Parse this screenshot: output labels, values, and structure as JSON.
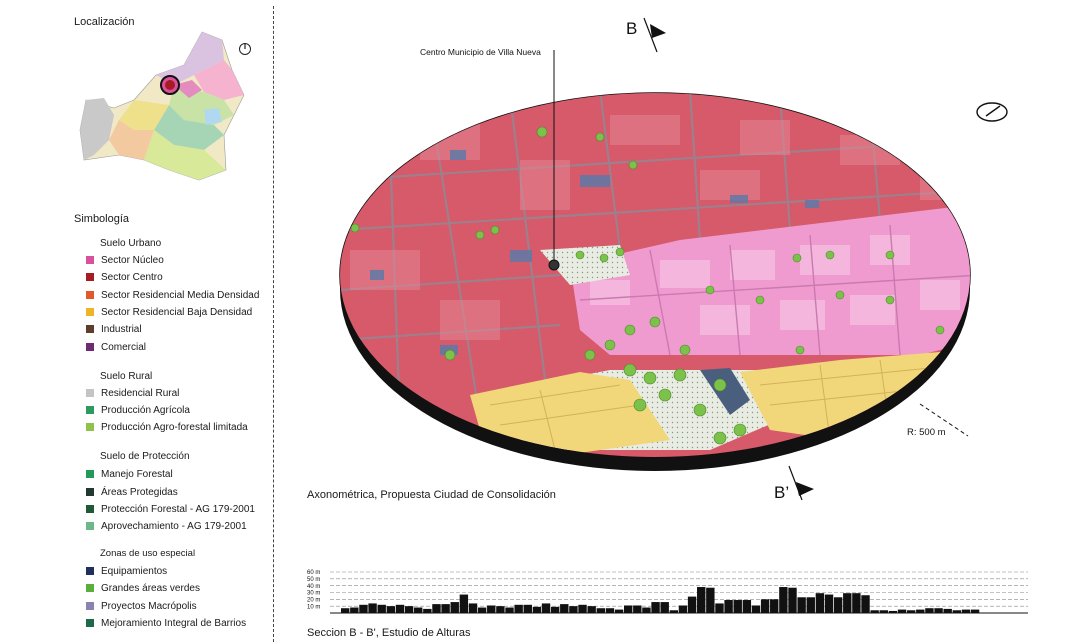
{
  "sidebar": {
    "location_title": "Localización",
    "legend_title": "Simbología",
    "groups": [
      {
        "title": "Suelo Urbano",
        "items": [
          {
            "label": "Sector Núcleo",
            "color": "#d9519c"
          },
          {
            "label": "Sector Centro",
            "color": "#a61c24"
          },
          {
            "label": "Sector Residencial Media Densidad",
            "color": "#e2582a"
          },
          {
            "label": "Sector Residencial Baja Densidad",
            "color": "#efb52a"
          },
          {
            "label": "Industrial",
            "color": "#5e3d2a"
          },
          {
            "label": "Comercial",
            "color": "#6d2b72"
          }
        ]
      },
      {
        "title": "Suelo Rural",
        "items": [
          {
            "label": "Residencial Rural",
            "color": "#c4c4c4"
          },
          {
            "label": "Producción Agrícola",
            "color": "#2e9a62"
          },
          {
            "label": "Producción Agro-forestal limitada",
            "color": "#8fc24a"
          }
        ]
      },
      {
        "title": "Suelo de Protección",
        "items": [
          {
            "label": "Manejo Forestal",
            "color": "#1f9a58"
          },
          {
            "label": "Áreas Protegidas",
            "color": "#22392f"
          },
          {
            "label": "Protección Forestal - AG 179-2001",
            "color": "#1f5a36"
          },
          {
            "label": "Aprovechamiento - AG 179-2001",
            "color": "#6cb88a"
          }
        ]
      },
      {
        "title": "Zonas de uso especial",
        "items": [
          {
            "label": "Equipamientos",
            "color": "#1f2f5e"
          },
          {
            "label": "Grandes áreas verdes",
            "color": "#5aae3c"
          },
          {
            "label": "Proyectos Macrópolis",
            "color": "#8a82b0"
          },
          {
            "label": "Mejoramiento Integral de Barrios",
            "color": "#1d6a4a"
          }
        ]
      }
    ]
  },
  "main": {
    "center_label": "Centro Municipio de Villa Nueva",
    "section_b": "B",
    "section_b_prime": "B’",
    "radius_label": "R: 500 m",
    "axonometric_caption": "Axonométrica, Propuesta Ciudad de Consolidación",
    "section_caption": "Seccion B - B', Estudio de Alturas"
  },
  "chart_data": {
    "type": "bar",
    "title": "Seccion B - B', Estudio de Alturas",
    "yticks": [
      "10 m",
      "20 m",
      "30 m",
      "40 m",
      "50 m",
      "60 m"
    ],
    "ylim": [
      0,
      60
    ],
    "grid": true,
    "values": [
      7,
      8,
      12,
      14,
      12,
      10,
      12,
      10,
      8,
      6,
      13,
      13,
      16,
      27,
      14,
      8,
      11,
      10,
      8,
      12,
      12,
      9,
      14,
      9,
      13,
      10,
      12,
      10,
      7,
      7,
      5,
      11,
      11,
      8,
      16,
      16,
      4,
      11,
      24,
      38,
      37,
      14,
      19,
      19,
      19,
      11,
      20,
      20,
      38,
      37,
      23,
      23,
      29,
      27,
      23,
      29,
      29,
      26,
      4,
      4,
      3,
      5,
      4,
      5,
      7,
      7,
      6,
      4,
      5,
      5
    ]
  },
  "colors": {
    "nucleo": "#e06f9a",
    "centro_pink": "#f09bd0",
    "yellow": "#f2d77a",
    "disc_edge": "#111111"
  }
}
